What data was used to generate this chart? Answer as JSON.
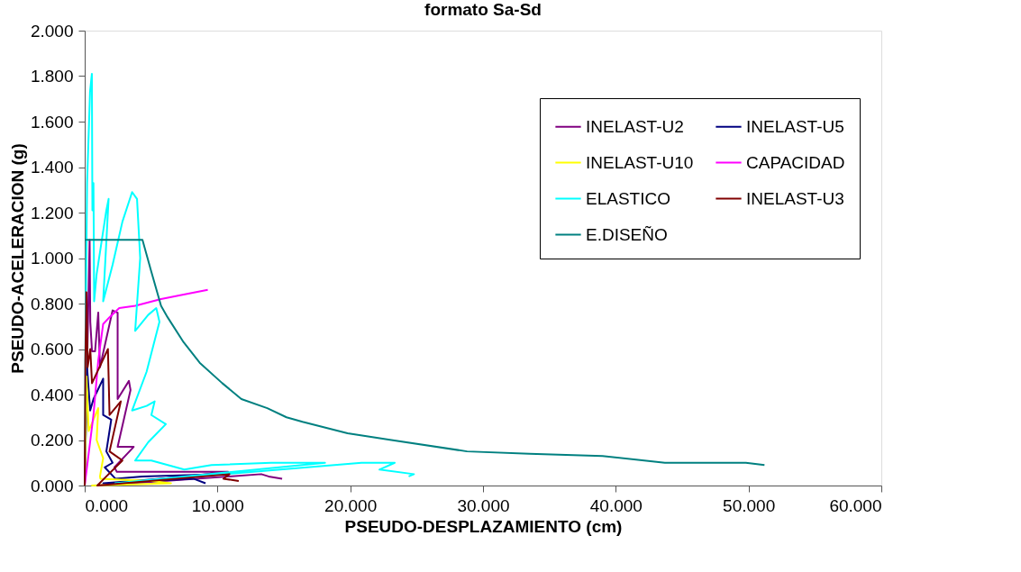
{
  "chart_data": {
    "type": "line",
    "title": "formato Sa-Sd",
    "xlabel": "PSEUDO-DESPLAZAMIENTO (cm)",
    "ylabel": "PSEUDO-ACELERACION (g)",
    "xlim": [
      0,
      60
    ],
    "ylim": [
      0,
      2
    ],
    "xticks": [
      {
        "value": 0,
        "label": "0.000"
      },
      {
        "value": 10,
        "label": "10.000"
      },
      {
        "value": 20,
        "label": "20.000"
      },
      {
        "value": 30,
        "label": "30.000"
      },
      {
        "value": 40,
        "label": "40.000"
      },
      {
        "value": 50,
        "label": "50.000"
      },
      {
        "value": 60,
        "label": "60.000"
      }
    ],
    "yticks": [
      {
        "value": 0,
        "label": "0.000"
      },
      {
        "value": 0.2,
        "label": "0.200"
      },
      {
        "value": 0.4,
        "label": "0.400"
      },
      {
        "value": 0.6,
        "label": "0.600"
      },
      {
        "value": 0.8,
        "label": "0.800"
      },
      {
        "value": 1.0,
        "label": "1.000"
      },
      {
        "value": 1.2,
        "label": "1.200"
      },
      {
        "value": 1.4,
        "label": "1.400"
      },
      {
        "value": 1.6,
        "label": "1.600"
      },
      {
        "value": 1.8,
        "label": "1.800"
      },
      {
        "value": 2.0,
        "label": "2.000"
      }
    ],
    "grid": false,
    "legend": "top right",
    "marker": "none",
    "line_style": "solid",
    "series": [
      {
        "name": "INELAST-U2",
        "color": "#800080",
        "x": [
          0,
          0.37,
          0.42,
          0.55,
          0.78,
          1.02,
          1.15,
          2.1,
          2.48,
          2.48,
          3.33,
          3.45,
          2.48,
          3.69,
          2.24,
          2.42,
          4.12,
          10.8,
          1.15,
          13.3,
          13.85,
          14.87
        ],
        "values": [
          0,
          1.08,
          0.72,
          0.59,
          0.59,
          0.76,
          0.52,
          0.77,
          0.76,
          0.38,
          0.46,
          0.42,
          0.17,
          0.17,
          0.08,
          0.06,
          0.06,
          0.06,
          0.0,
          0.05,
          0.04,
          0.03
        ]
      },
      {
        "name": "INELAST-U5",
        "color": "#000080",
        "x": [
          0,
          0.18,
          0.41,
          0.66,
          1.39,
          1.39,
          2.0,
          1.63,
          2.1,
          1.51,
          2.31,
          4.34,
          9.98,
          1.4,
          8.19,
          9.1
        ],
        "values": [
          0,
          0.52,
          0.33,
          0.38,
          0.47,
          0.31,
          0.29,
          0.15,
          0.1,
          0.08,
          0.03,
          0.04,
          0.05,
          0.01,
          0.03,
          0.01
        ]
      },
      {
        "name": "INELAST-U10",
        "color": "#ffff00",
        "x": [
          0,
          0.05,
          0.13,
          0.3,
          1.02,
          0.9,
          1.39,
          1.15,
          1.18,
          5.02,
          6.5,
          0.5
        ],
        "values": [
          0,
          0.13,
          0.48,
          0.24,
          0.34,
          0.2,
          0.12,
          0.04,
          0.03,
          0.02,
          0.01,
          0
        ]
      },
      {
        "name": "CAPACIDAD",
        "color": "#ff00ff",
        "x": [
          0,
          0.66,
          1.02,
          1.39,
          1.87,
          2.6,
          3.8,
          5.75,
          7.45,
          9.27
        ],
        "values": [
          0,
          0.31,
          0.55,
          0.71,
          0.74,
          0.78,
          0.79,
          0.82,
          0.84,
          0.86
        ]
      },
      {
        "name": "ELASTICO",
        "color": "#00ffff",
        "x": [
          0,
          0.05,
          0.18,
          0.4,
          0.54,
          0.58,
          0.66,
          0.71,
          0.9,
          1.63,
          1.8,
          1.39,
          2.1,
          2.84,
          3.57,
          3.94,
          4.18,
          3.8,
          4.78,
          5.39,
          5.63,
          4.66,
          3.57,
          4.66,
          5.27,
          5.02,
          6.11,
          4.78,
          3.8,
          5.02,
          7.5,
          9.55,
          14.05,
          18.1,
          2.3,
          20.85,
          23.35,
          22.2,
          24.8,
          24.4
        ],
        "values": [
          0,
          0.59,
          1.33,
          1.73,
          1.81,
          1.21,
          1.33,
          0.81,
          0.93,
          1.21,
          1.26,
          0.81,
          0.97,
          1.16,
          1.29,
          1.26,
          1.0,
          0.68,
          0.75,
          0.78,
          0.72,
          0.5,
          0.33,
          0.35,
          0.37,
          0.31,
          0.27,
          0.19,
          0.11,
          0.11,
          0.07,
          0.09,
          0.1,
          0.1,
          0.01,
          0.1,
          0.1,
          0.07,
          0.05,
          0.04
        ]
      },
      {
        "name": "INELAST-U3",
        "color": "#800000",
        "x": [
          0,
          0.05,
          0.13,
          0.22,
          0.42,
          0.55,
          1.75,
          1.87,
          2.72,
          1.87,
          2.84,
          1.63,
          0.95,
          10.9,
          10.45,
          11.6
        ],
        "values": [
          0,
          0.55,
          0.85,
          0.52,
          0.6,
          0.45,
          0.6,
          0.31,
          0.37,
          0.15,
          0.11,
          0.04,
          0.0,
          0.05,
          0.03,
          0.02
        ]
      },
      {
        "name": "E.DISEÑO",
        "color": "#008080",
        "x": [
          0,
          4.35,
          5.02,
          5.75,
          6.24,
          7.45,
          8.66,
          10.36,
          11.8,
          13.75,
          15.2,
          16.4,
          19.8,
          23.1,
          28.8,
          33.5,
          39,
          43.7,
          49.8,
          51.2
        ],
        "values": [
          1.08,
          1.08,
          0.94,
          0.79,
          0.74,
          0.63,
          0.54,
          0.45,
          0.38,
          0.34,
          0.3,
          0.28,
          0.23,
          0.2,
          0.15,
          0.14,
          0.13,
          0.1,
          0.1,
          0.09
        ]
      }
    ]
  }
}
